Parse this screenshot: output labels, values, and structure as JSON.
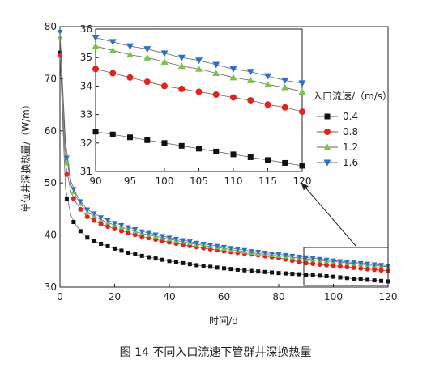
{
  "caption": "图 14    不同入口流速下管群井深换热量",
  "colors": {
    "0.4": "#111111",
    "0.8": "#e8201c",
    "1.2": "#7cc24a",
    "1.6": "#2a6fd0",
    "axis": "#222222",
    "line": "#555555"
  },
  "chart_data": [
    {
      "id": "main",
      "type": "line",
      "xlabel": "时间/d",
      "ylabel": "单位井深换热量/（W/m）",
      "xlim": [
        0,
        120
      ],
      "ylim": [
        30,
        80
      ],
      "xticks": [
        0,
        20,
        40,
        60,
        80,
        100,
        120
      ],
      "yticks": [
        30,
        40,
        50,
        60,
        70,
        80
      ],
      "grid": false,
      "legend_title": "入口流速/（m/s）",
      "legend_position": "right",
      "series": [
        {
          "name": "0.4",
          "marker": "square",
          "color": "#111111",
          "x": [
            0,
            1,
            3,
            5,
            7,
            10,
            15,
            20,
            25,
            30,
            40,
            50,
            60,
            70,
            80,
            90,
            100,
            110,
            120
          ],
          "y": [
            75,
            53,
            45,
            42.5,
            41,
            39.5,
            38.3,
            37.4,
            36.6,
            36,
            35,
            34.2,
            33.6,
            33.1,
            32.7,
            32.4,
            32,
            31.5,
            31.1
          ]
        },
        {
          "name": "0.8",
          "marker": "circle",
          "color": "#e8201c",
          "x": [
            0,
            1,
            3,
            5,
            7,
            10,
            15,
            20,
            25,
            30,
            40,
            50,
            60,
            70,
            80,
            90,
            100,
            110,
            120
          ],
          "y": [
            74.5,
            58,
            49.5,
            47,
            45.2,
            43.5,
            42.1,
            41.2,
            40.4,
            39.7,
            38.6,
            37.7,
            36.9,
            36.3,
            35.6,
            34.6,
            34.1,
            33.6,
            33.1
          ]
        },
        {
          "name": "1.2",
          "marker": "triangle",
          "color": "#7cc24a",
          "x": [
            0,
            1,
            3,
            5,
            7,
            10,
            15,
            20,
            25,
            30,
            40,
            50,
            60,
            70,
            80,
            90,
            100,
            110,
            120
          ],
          "y": [
            78,
            62,
            51,
            48.2,
            46.3,
            44.4,
            42.9,
            41.9,
            41.1,
            40.3,
            39.2,
            38.2,
            37.4,
            36.6,
            36,
            35.4,
            34.9,
            34.4,
            33.9
          ]
        },
        {
          "name": "1.6",
          "marker": "triangle-down",
          "color": "#2a6fd0",
          "x": [
            0,
            1,
            3,
            5,
            7,
            10,
            15,
            20,
            25,
            30,
            40,
            50,
            60,
            70,
            80,
            90,
            100,
            110,
            120
          ],
          "y": [
            79,
            64,
            51.8,
            48.8,
            46.8,
            44.9,
            43.4,
            42.3,
            41.5,
            40.7,
            39.5,
            38.5,
            37.7,
            36.9,
            36.3,
            35.7,
            35.1,
            34.6,
            34.1
          ]
        }
      ]
    },
    {
      "id": "inset",
      "type": "line",
      "xlim": [
        90,
        120
      ],
      "ylim": [
        31,
        36
      ],
      "xticks": [
        90,
        95,
        100,
        105,
        110,
        115,
        120
      ],
      "yticks": [
        31,
        32,
        33,
        34,
        35,
        36
      ],
      "grid": false,
      "series": [
        {
          "name": "0.4",
          "marker": "square",
          "color": "#111111",
          "x": [
            90,
            92.5,
            95,
            97.5,
            100,
            102.5,
            105,
            107.5,
            110,
            112.5,
            115,
            117.5,
            120
          ],
          "y": [
            32.4,
            32.3,
            32.2,
            32.1,
            32.0,
            31.9,
            31.8,
            31.7,
            31.6,
            31.5,
            31.4,
            31.3,
            31.2
          ]
        },
        {
          "name": "0.8",
          "marker": "circle",
          "color": "#e8201c",
          "x": [
            90,
            92.5,
            95,
            97.5,
            100,
            102.5,
            105,
            107.5,
            110,
            112.5,
            115,
            117.5,
            120
          ],
          "y": [
            34.6,
            34.45,
            34.3,
            34.15,
            34.0,
            33.9,
            33.8,
            33.7,
            33.6,
            33.5,
            33.35,
            33.25,
            33.1
          ]
        },
        {
          "name": "1.2",
          "marker": "triangle",
          "color": "#7cc24a",
          "x": [
            90,
            92.5,
            95,
            97.5,
            100,
            102.5,
            105,
            107.5,
            110,
            112.5,
            115,
            117.5,
            120
          ],
          "y": [
            35.4,
            35.25,
            35.1,
            35.0,
            34.85,
            34.7,
            34.6,
            34.45,
            34.3,
            34.2,
            34.05,
            33.95,
            33.8
          ]
        },
        {
          "name": "1.6",
          "marker": "triangle-down",
          "color": "#2a6fd0",
          "x": [
            90,
            92.5,
            95,
            97.5,
            100,
            102.5,
            105,
            107.5,
            110,
            112.5,
            115,
            117.5,
            120
          ],
          "y": [
            35.7,
            35.55,
            35.4,
            35.3,
            35.15,
            35.0,
            34.9,
            34.75,
            34.6,
            34.5,
            34.35,
            34.2,
            34.1
          ]
        }
      ]
    }
  ]
}
